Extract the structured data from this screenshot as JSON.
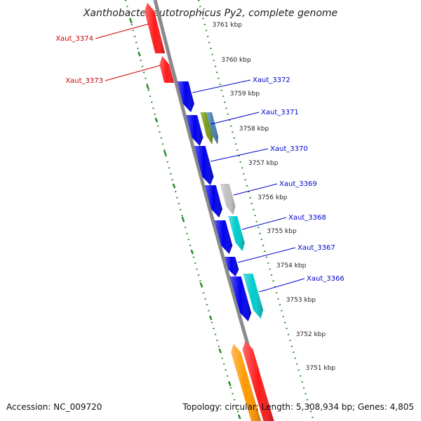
{
  "title": "Xanthobacter autotrophicus Py2, complete genome",
  "footer": {
    "accession": "Accession: NC_009720",
    "topology": "Topology: circular; Length: 5,308,934 bp; Genes: 4,805"
  },
  "colors": {
    "backbone": "#8a8a8a",
    "ticks": "#228b22",
    "label_reverse": "#cc0000",
    "label_forward": "#0000cc",
    "red": "#ff1a1a",
    "blue": "#0000ee",
    "olive": "#7a9a1a",
    "steelblue": "#4682b4",
    "silver": "#c0c0c0",
    "cyan": "#00cccc",
    "orange": "#ff9900"
  },
  "scale": {
    "unit": "kbp",
    "tick_labels": [
      "3761 kbp",
      "3760 kbp",
      "3759 kbp",
      "3758 kbp",
      "3757 kbp",
      "3756 kbp",
      "3755 kbp",
      "3754 kbp",
      "3753 kbp",
      "3752 kbp",
      "3751 kbp"
    ]
  },
  "genes": [
    {
      "label": "Xaut_3374",
      "strand": "reverse",
      "color": "red",
      "labeled": true
    },
    {
      "label": "Xaut_3373",
      "strand": "reverse",
      "color": "red",
      "labeled": true
    },
    {
      "label": "Xaut_3372",
      "strand": "forward",
      "color": "blue",
      "labeled": true
    },
    {
      "label": "Xaut_3371",
      "strand": "forward",
      "color": "olive",
      "labeled": true
    },
    {
      "label": "",
      "strand": "forward",
      "color": "steelblue",
      "labeled": false
    },
    {
      "label": "Xaut_3370",
      "strand": "forward",
      "color": "blue",
      "labeled": true
    },
    {
      "label": "Xaut_3369",
      "strand": "forward",
      "color": "silver",
      "labeled": true
    },
    {
      "label": "Xaut_3368",
      "strand": "forward",
      "color": "cyan",
      "labeled": true
    },
    {
      "label": "Xaut_3367",
      "strand": "forward",
      "color": "blue",
      "labeled": true
    },
    {
      "label": "Xaut_3366",
      "strand": "forward",
      "color": "cyan",
      "labeled": true
    },
    {
      "label": "",
      "strand": "forward",
      "color": "blue",
      "labeled": false
    },
    {
      "label": "",
      "strand": "forward",
      "color": "blue",
      "labeled": false
    },
    {
      "label": "",
      "strand": "forward",
      "color": "blue",
      "labeled": false
    },
    {
      "label": "",
      "strand": "forward",
      "color": "blue",
      "labeled": false
    },
    {
      "label": "",
      "strand": "reverse",
      "color": "orange",
      "labeled": false
    },
    {
      "label": "",
      "strand": "reverse",
      "color": "red",
      "labeled": false
    }
  ]
}
